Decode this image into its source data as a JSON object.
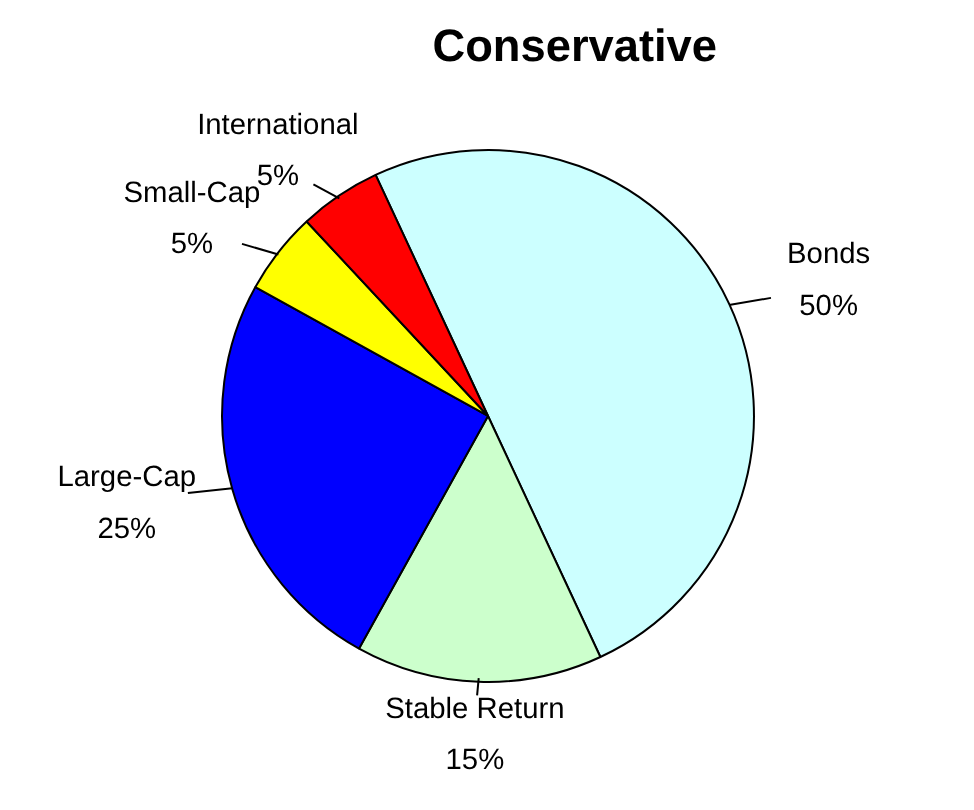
{
  "chart_data": {
    "type": "pie",
    "title": "Conservative",
    "categories": [
      "Bonds",
      "Stable Return",
      "Large-Cap",
      "Small-Cap",
      "International"
    ],
    "values": [
      50,
      15,
      25,
      5,
      5
    ],
    "value_labels": [
      "50%",
      "15%",
      "25%",
      "5%",
      "5%"
    ],
    "colors": [
      "#ccffff",
      "#ccffcc",
      "#0000ff",
      "#ffff00",
      "#ff0000"
    ]
  }
}
